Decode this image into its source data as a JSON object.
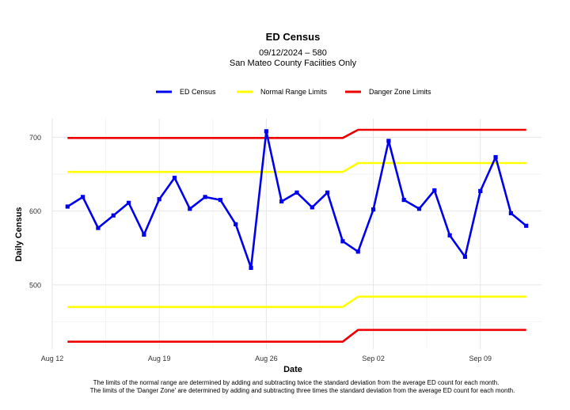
{
  "chart_data": {
    "type": "line",
    "title": "ED Census",
    "subtitle_line1": "09/12/2024 – 580",
    "subtitle_line2": "San Mateo County Faciities Only",
    "xlabel": "Date",
    "ylabel": "Daily Census",
    "legend_position": "top",
    "grid": true,
    "x_range": [
      "2024-08-12",
      "2024-09-13"
    ],
    "y_range": [
      413,
      725
    ],
    "x_ticks": [
      {
        "date": "2024-08-12",
        "label": "Aug 12"
      },
      {
        "date": "2024-08-19",
        "label": "Aug 19"
      },
      {
        "date": "2024-08-26",
        "label": "Aug 26"
      },
      {
        "date": "2024-09-02",
        "label": "Sep 02"
      },
      {
        "date": "2024-09-09",
        "label": "Sep 09"
      }
    ],
    "y_ticks": [
      500,
      600,
      700
    ],
    "series": [
      {
        "name": "ED Census",
        "color": "#0000ee",
        "markers": true,
        "x": [
          "2024-08-13",
          "2024-08-14",
          "2024-08-15",
          "2024-08-16",
          "2024-08-17",
          "2024-08-18",
          "2024-08-19",
          "2024-08-20",
          "2024-08-21",
          "2024-08-22",
          "2024-08-23",
          "2024-08-24",
          "2024-08-25",
          "2024-08-26",
          "2024-08-27",
          "2024-08-28",
          "2024-08-29",
          "2024-08-30",
          "2024-08-31",
          "2024-09-01",
          "2024-09-02",
          "2024-09-03",
          "2024-09-04",
          "2024-09-05",
          "2024-09-06",
          "2024-09-07",
          "2024-09-08",
          "2024-09-09",
          "2024-09-10",
          "2024-09-11",
          "2024-09-12"
        ],
        "y": [
          606,
          619,
          577,
          594,
          611,
          568,
          616,
          645,
          603,
          619,
          615,
          582,
          523,
          708,
          613,
          625,
          605,
          625,
          559,
          545,
          602,
          695,
          615,
          603,
          628,
          567,
          538,
          627,
          673,
          597,
          580
        ]
      },
      {
        "name": "Normal Range Limits",
        "color": "#ffff00",
        "segments": [
          {
            "x": [
              "2024-08-13",
              "2024-08-31",
              "2024-09-01",
              "2024-09-12"
            ],
            "y": [
              653,
              653,
              665,
              665
            ]
          },
          {
            "x": [
              "2024-08-13",
              "2024-08-31",
              "2024-09-01",
              "2024-09-12"
            ],
            "y": [
              470,
              470,
              484,
              484
            ]
          }
        ]
      },
      {
        "name": "Danger Zone Limits",
        "color": "#ee0000",
        "segments": [
          {
            "x": [
              "2024-08-13",
              "2024-08-31",
              "2024-09-01",
              "2024-09-12"
            ],
            "y": [
              699,
              699,
              710,
              710
            ]
          },
          {
            "x": [
              "2024-08-13",
              "2024-08-31",
              "2024-09-01",
              "2024-09-12"
            ],
            "y": [
              423,
              423,
              439,
              439
            ]
          }
        ]
      }
    ],
    "caption_line1": "The limits of the normal range are determined by adding and subtracting twice the standard deviation from the average ED count for each month.",
    "caption_line2": "The limits of the 'Danger Zone' are determined by adding and subtracting three times the standard deviation from the average ED count for each month."
  }
}
